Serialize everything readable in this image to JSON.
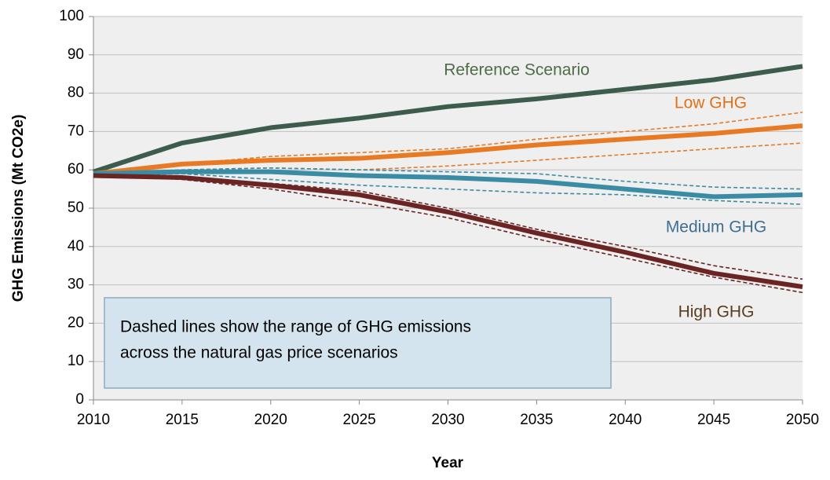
{
  "chart_data": {
    "type": "line",
    "xlabel": "Year",
    "ylabel": "GHG Emissions  (Mt CO2e)",
    "x": [
      2010,
      2015,
      2020,
      2025,
      2030,
      2035,
      2040,
      2045,
      2050
    ],
    "xlim": [
      2010,
      2050
    ],
    "xticks": [
      2010,
      2015,
      2020,
      2025,
      2030,
      2035,
      2040,
      2045,
      2050
    ],
    "ylim": [
      0,
      100
    ],
    "yticks": [
      0,
      10,
      20,
      30,
      40,
      50,
      60,
      70,
      80,
      90,
      100
    ],
    "grid": true,
    "series": [
      {
        "name": "Reference Scenario",
        "color": "#3d5c4d",
        "label_color": "#4f6b48",
        "values": [
          59.5,
          67,
          71,
          73.5,
          76.5,
          78.5,
          81,
          83.5,
          87
        ]
      },
      {
        "name": "Low GHG",
        "color": "#e87a23",
        "label_color": "#e0721c",
        "values": [
          59,
          61.5,
          62.5,
          63,
          64.5,
          66.5,
          68,
          69.5,
          71.5
        ],
        "range_high": [
          59,
          61.5,
          63.5,
          64.5,
          65.5,
          68,
          70,
          72,
          75
        ],
        "range_low": [
          59,
          60,
          60.5,
          60,
          61,
          62.5,
          64,
          65.5,
          67
        ]
      },
      {
        "name": "Medium GHG",
        "color": "#3a8ca5",
        "label_color": "#3e6e92",
        "values": [
          59,
          59.5,
          59.5,
          58.5,
          58,
          57,
          55,
          53,
          53.5
        ],
        "range_high": [
          59,
          60,
          60.5,
          60,
          59.5,
          59,
          57,
          55.5,
          55
        ],
        "range_low": [
          58.5,
          59,
          57.5,
          56,
          55,
          54,
          53.5,
          52,
          51
        ]
      },
      {
        "name": "High GHG",
        "color": "#6b2424",
        "label_color": "#5a3c1e",
        "values": [
          58.5,
          58,
          56,
          53.5,
          49,
          43.5,
          38.5,
          33,
          29.5
        ],
        "range_high": [
          58.5,
          58,
          56.5,
          54.5,
          50,
          44.5,
          40,
          35,
          31.5
        ],
        "range_low": [
          58.5,
          57.5,
          55,
          51.5,
          47.5,
          42,
          37,
          32,
          28
        ]
      }
    ],
    "note": [
      "Dashed lines show the range of GHG emissions",
      "across the natural gas price scenarios"
    ]
  }
}
